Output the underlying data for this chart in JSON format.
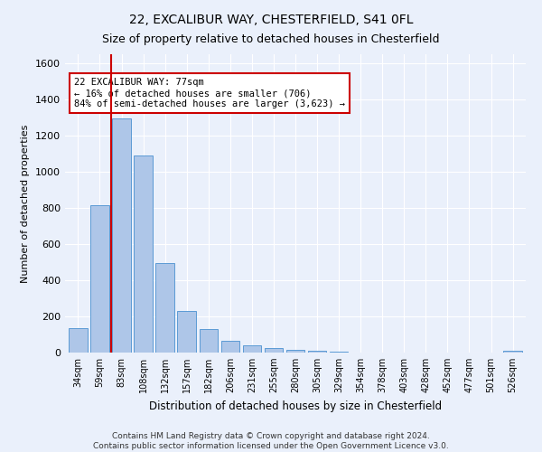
{
  "title1": "22, EXCALIBUR WAY, CHESTERFIELD, S41 0FL",
  "title2": "Size of property relative to detached houses in Chesterfield",
  "xlabel": "Distribution of detached houses by size in Chesterfield",
  "ylabel": "Number of detached properties",
  "footer1": "Contains HM Land Registry data © Crown copyright and database right 2024.",
  "footer2": "Contains public sector information licensed under the Open Government Licence v3.0.",
  "bar_labels": [
    "34sqm",
    "59sqm",
    "83sqm",
    "108sqm",
    "132sqm",
    "157sqm",
    "182sqm",
    "206sqm",
    "231sqm",
    "255sqm",
    "280sqm",
    "305sqm",
    "329sqm",
    "354sqm",
    "378sqm",
    "403sqm",
    "428sqm",
    "452sqm",
    "477sqm",
    "501sqm",
    "526sqm"
  ],
  "bar_values": [
    135,
    815,
    1295,
    1090,
    495,
    230,
    130,
    65,
    40,
    27,
    15,
    8,
    3,
    1,
    0,
    0,
    0,
    0,
    0,
    0,
    10
  ],
  "bar_color": "#aec6e8",
  "bar_edge_color": "#5b9bd5",
  "ylim": [
    0,
    1650
  ],
  "yticks": [
    0,
    200,
    400,
    600,
    800,
    1000,
    1200,
    1400,
    1600
  ],
  "property_line_x": 1.5,
  "annotation_line1": "22 EXCALIBUR WAY: 77sqm",
  "annotation_line2": "← 16% of detached houses are smaller (706)",
  "annotation_line3": "84% of semi-detached houses are larger (3,623) →",
  "annotation_box_color": "#ffffff",
  "annotation_box_edge": "#cc0000",
  "property_line_color": "#cc0000",
  "bg_color": "#eaf0fb",
  "grid_color": "#ffffff"
}
